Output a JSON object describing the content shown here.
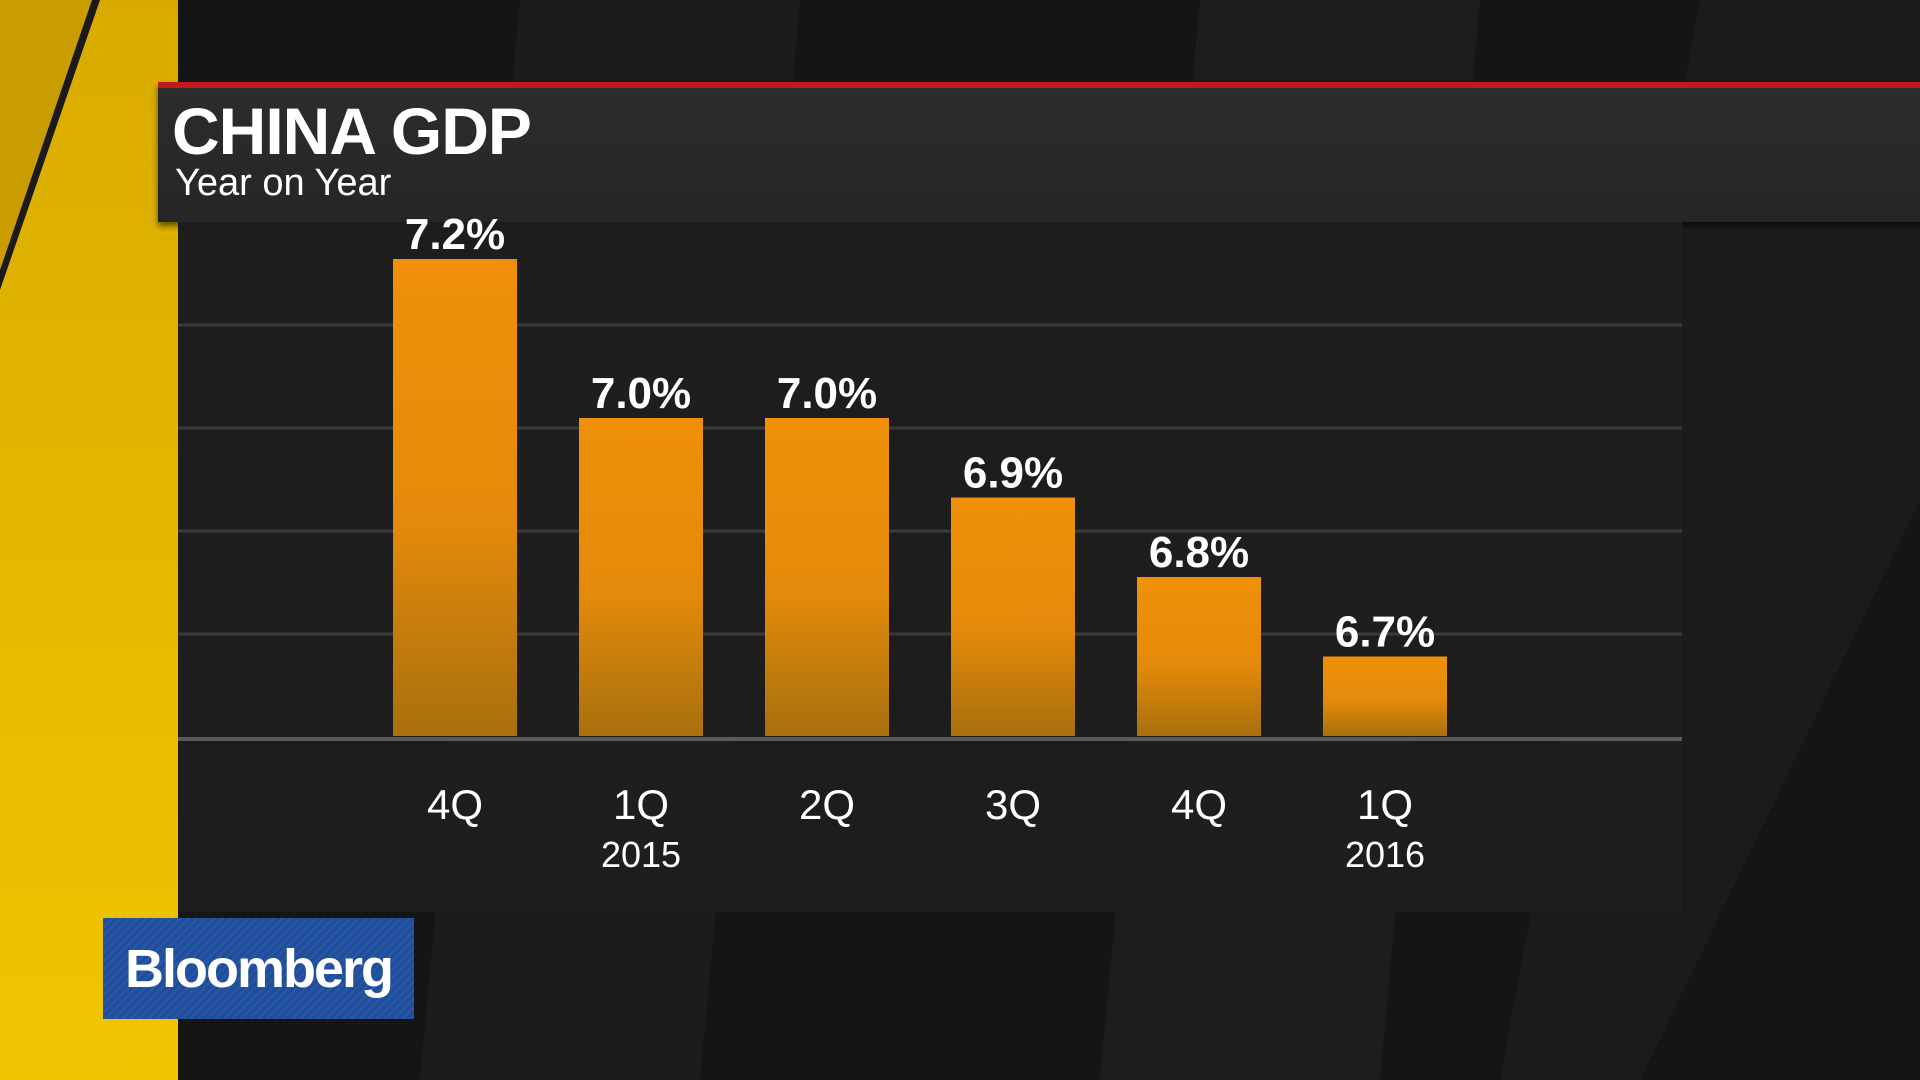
{
  "brand": {
    "logo_text": "Bloomberg",
    "logo_color": "#1f4e9d",
    "accent_yellow": "#e0b400",
    "rule_red": "#c4191c"
  },
  "chart_data": {
    "type": "bar",
    "title": "CHINA GDP",
    "subtitle": "Year on Year",
    "categories": [
      "4Q",
      "1Q",
      "2Q",
      "3Q",
      "4Q",
      "1Q"
    ],
    "year_labels": [
      "",
      "2015",
      "",
      "",
      "",
      "2016"
    ],
    "values": [
      7.2,
      7.0,
      7.0,
      6.9,
      6.8,
      6.7
    ],
    "value_labels": [
      "7.2%",
      "7.0%",
      "7.0%",
      "6.9%",
      "6.8%",
      "6.7%"
    ],
    "ylim": [
      6.6,
      7.3
    ],
    "grid": true,
    "bar_color_top": "#f0900a",
    "bar_color_bottom": "#a8700e"
  }
}
